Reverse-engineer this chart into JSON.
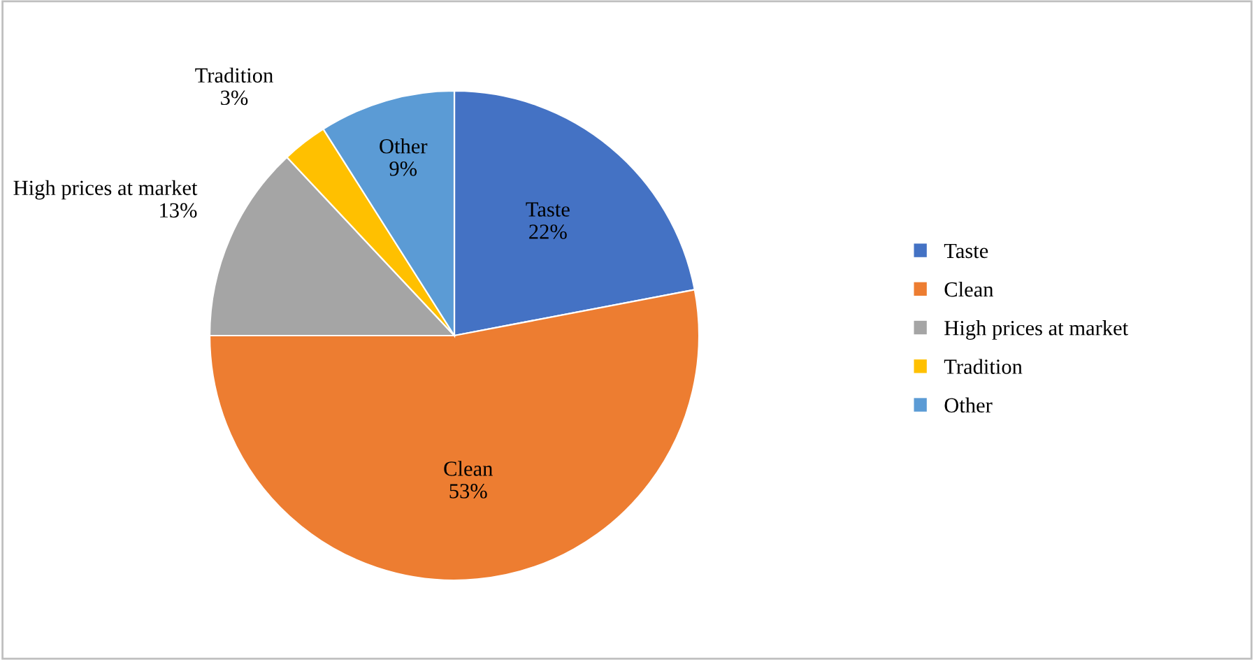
{
  "chart_data": {
    "type": "pie",
    "categories": [
      "Taste",
      "Clean",
      "High prices at market",
      "Tradition",
      "Other"
    ],
    "values": [
      22,
      53,
      13,
      3,
      9
    ],
    "colors": [
      "#4472c4",
      "#ed7d31",
      "#a5a5a5",
      "#ffc000",
      "#5b9bd5"
    ],
    "value_labels": [
      "22%",
      "53%",
      "13%",
      "3%",
      "9%"
    ],
    "legend": "right"
  }
}
